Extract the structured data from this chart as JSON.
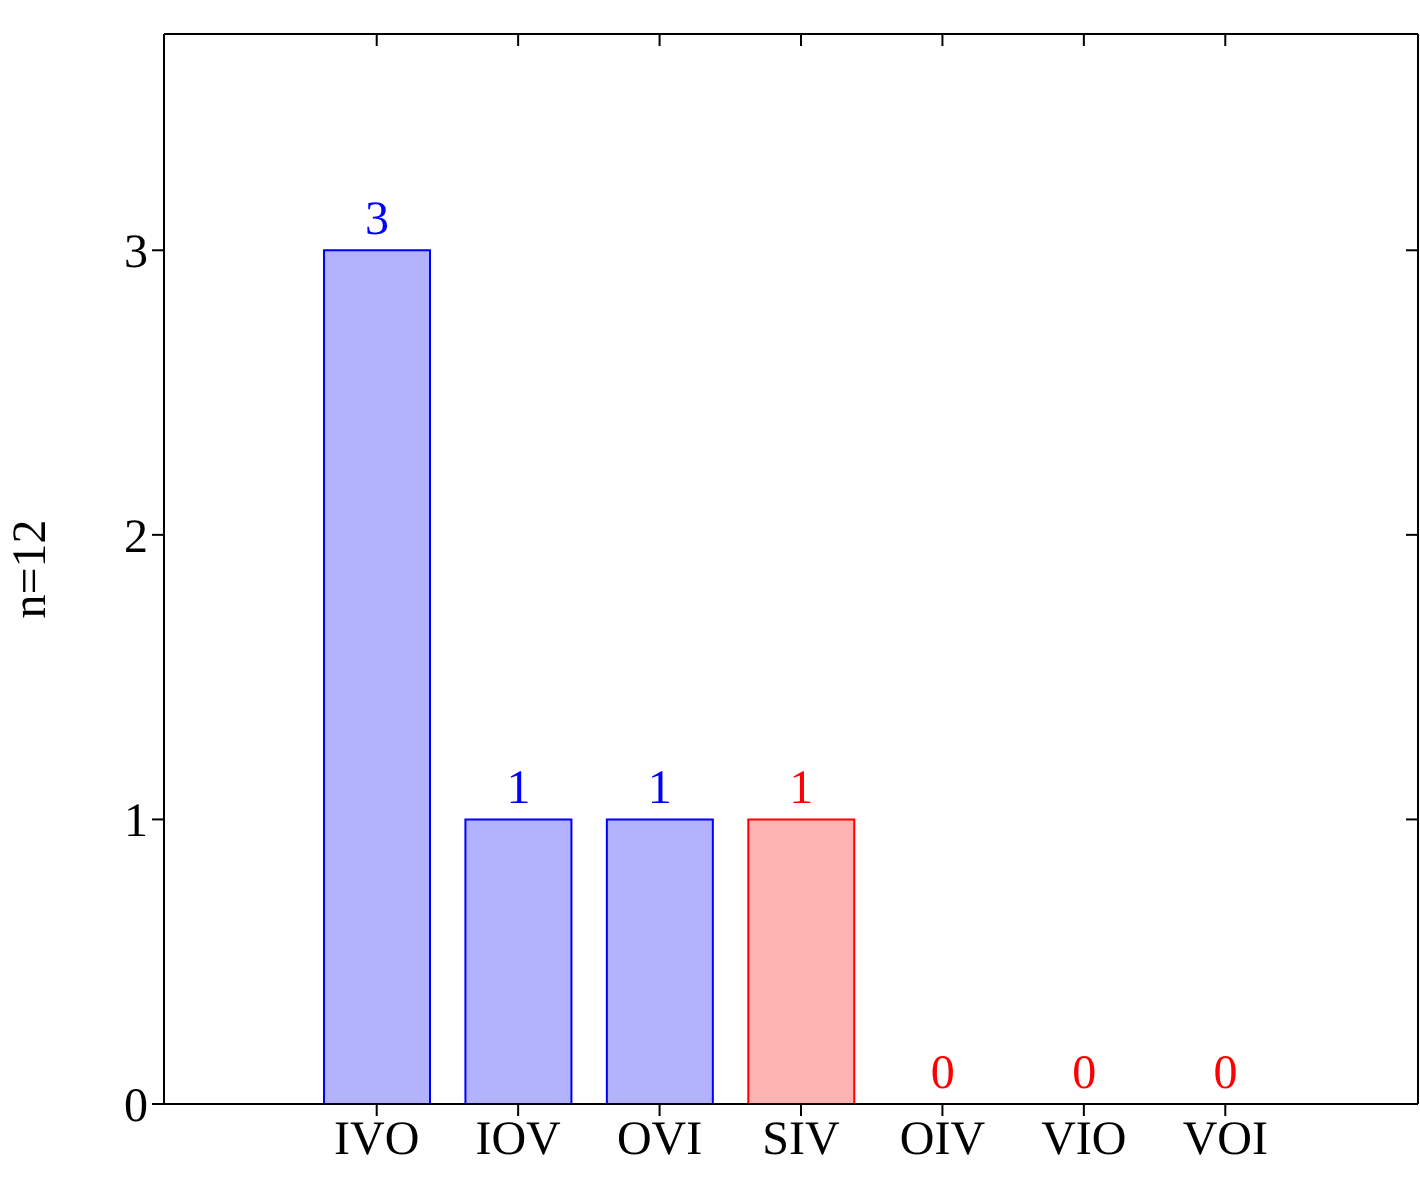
{
  "chart_data": {
    "type": "bar",
    "ylabel": "n=12",
    "categories": [
      "IVO",
      "IOV",
      "OVI",
      "SIV",
      "OIV",
      "VIO",
      "VOI"
    ],
    "values": [
      3,
      1,
      1,
      1,
      0,
      0,
      0
    ],
    "colors": [
      "#0000ff",
      "#0000ff",
      "#0000ff",
      "#ff0000",
      "#ff0000",
      "#ff0000",
      "#ff0000"
    ],
    "ylim": [
      0,
      3.76
    ],
    "yticks": [
      0,
      1,
      2,
      3
    ],
    "grid": false,
    "data_labels": true
  }
}
